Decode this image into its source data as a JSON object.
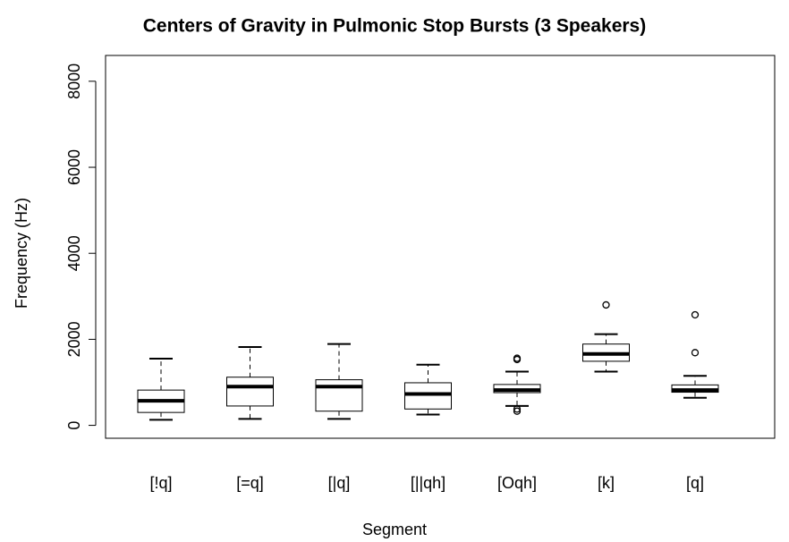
{
  "chart_data": {
    "type": "boxplot",
    "title": "Centers of Gravity in Pulmonic Stop Bursts (3 Speakers)",
    "x_label": "Segment",
    "y_label": "Frequency (Hz)",
    "categories": [
      "[!q]",
      "[=q]",
      "[|q]",
      "[||qh]",
      "[Oqh]",
      "[k]",
      "[q]"
    ],
    "boxes": [
      {
        "min": 130,
        "q1": 300,
        "median": 570,
        "q3": 820,
        "max": 1550,
        "outliers": []
      },
      {
        "min": 150,
        "q1": 450,
        "median": 900,
        "q3": 1120,
        "max": 1820,
        "outliers": []
      },
      {
        "min": 150,
        "q1": 330,
        "median": 900,
        "q3": 1060,
        "max": 1890,
        "outliers": []
      },
      {
        "min": 250,
        "q1": 380,
        "median": 730,
        "q3": 990,
        "max": 1410,
        "outliers": []
      },
      {
        "min": 450,
        "q1": 760,
        "median": 820,
        "q3": 950,
        "max": 1250,
        "outliers": [
          330,
          380,
          1530,
          1560
        ]
      },
      {
        "min": 1250,
        "q1": 1490,
        "median": 1660,
        "q3": 1890,
        "max": 2120,
        "outliers": [
          2800
        ]
      },
      {
        "min": 640,
        "q1": 770,
        "median": 820,
        "q3": 940,
        "max": 1150,
        "outliers": [
          1690,
          2570
        ]
      }
    ],
    "color": "#000000",
    "ylim": [
      -300,
      8600
    ],
    "yticks": [
      0,
      2000,
      4000,
      6000,
      8000
    ]
  }
}
